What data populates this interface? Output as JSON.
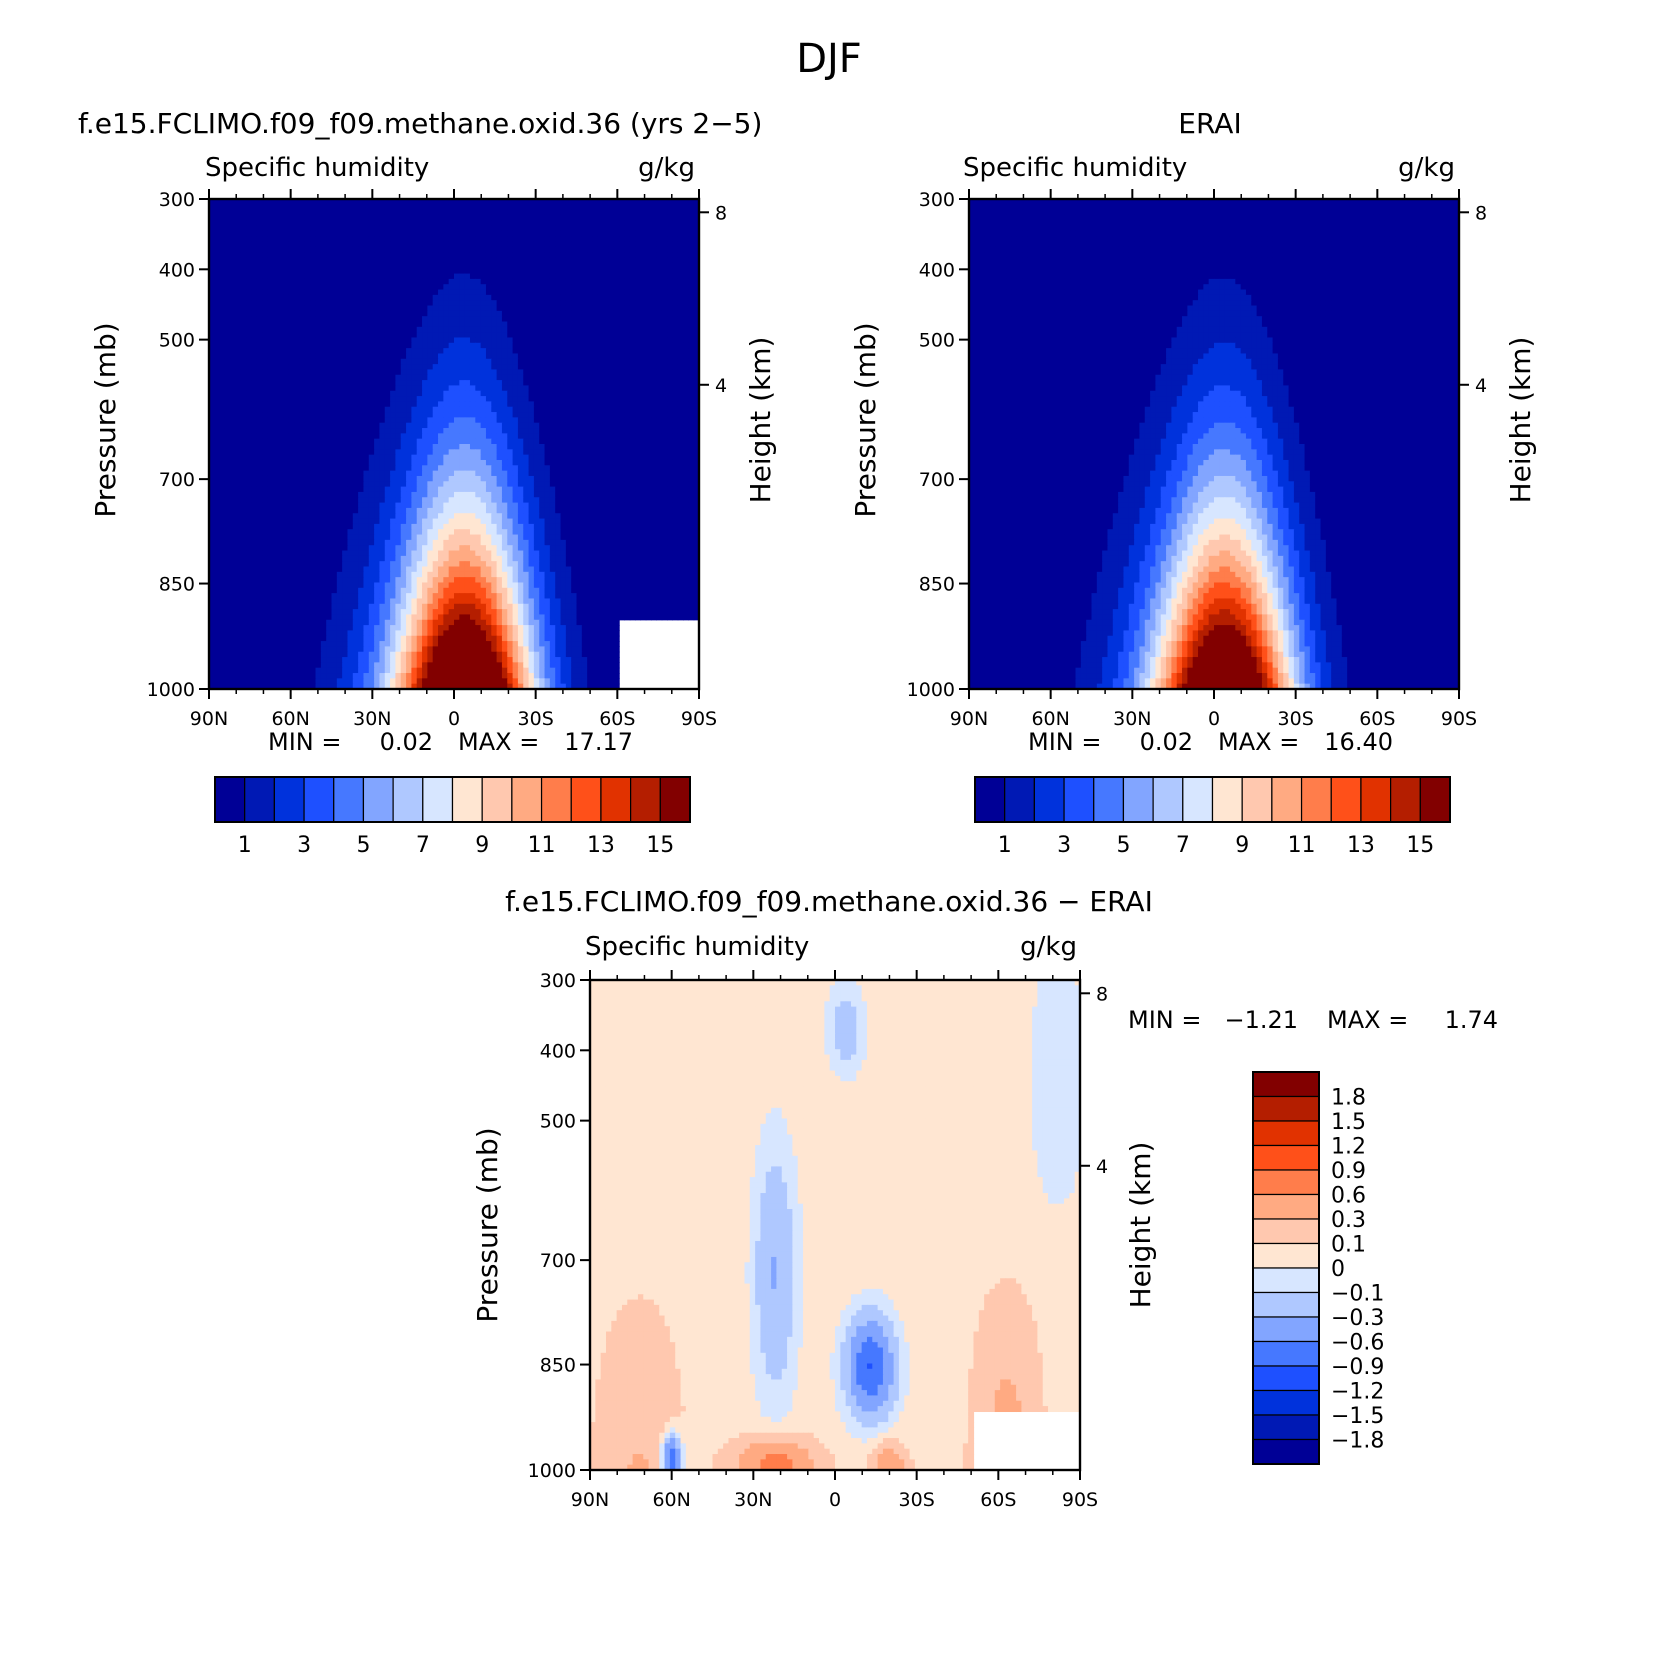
{
  "figure": {
    "title": "DJF"
  },
  "chart_data": [
    {
      "type": "heatmap",
      "panel_title": "f.e15.FCLIMO.f09_f09.methane.oxid.36 (yrs 2−5)",
      "left_string": "Specific humidity",
      "right_string": "g/kg",
      "ylabel": "Pressure (mb)",
      "ylabel_right": "Height (km)",
      "x_ticks": [
        "90N",
        "60N",
        "30N",
        "0",
        "30S",
        "60S",
        "90S"
      ],
      "y_ticks": [
        "300",
        "400",
        "500",
        "700",
        "850",
        "1000"
      ],
      "y_right_ticks": [
        "8",
        "4"
      ],
      "min_label": "MIN =",
      "min_value": "0.02",
      "max_label": "MAX =",
      "max_value": "17.17",
      "levels": [
        1,
        2,
        3,
        4,
        5,
        6,
        7,
        8,
        9,
        10,
        11,
        12,
        13,
        14,
        15
      ],
      "colorbar_labels": [
        "1",
        "3",
        "5",
        "7",
        "9",
        "11",
        "13",
        "15"
      ],
      "colors": [
        "#000096",
        "#0019b4",
        "#0032dc",
        "#1e50ff",
        "#4678ff",
        "#82a5ff",
        "#afc8ff",
        "#d7e6ff",
        "#ffe6d2",
        "#ffc8af",
        "#ffaa82",
        "#ff7d4b",
        "#ff5019",
        "#e13200",
        "#b41e00",
        "#820000"
      ],
      "field": {
        "peak": 17.17,
        "peak_lat": -5,
        "masked_surface": "60S-90S below 900 mb"
      }
    },
    {
      "type": "heatmap",
      "panel_title": "ERAI",
      "left_string": "Specific humidity",
      "right_string": "g/kg",
      "ylabel": "Pressure (mb)",
      "ylabel_right": "Height (km)",
      "x_ticks": [
        "90N",
        "60N",
        "30N",
        "0",
        "30S",
        "60S",
        "90S"
      ],
      "y_ticks": [
        "300",
        "400",
        "500",
        "700",
        "850",
        "1000"
      ],
      "y_right_ticks": [
        "8",
        "4"
      ],
      "min_label": "MIN =",
      "min_value": "0.02",
      "max_label": "MAX =",
      "max_value": "16.40",
      "levels": [
        1,
        2,
        3,
        4,
        5,
        6,
        7,
        8,
        9,
        10,
        11,
        12,
        13,
        14,
        15
      ],
      "colorbar_labels": [
        "1",
        "3",
        "5",
        "7",
        "9",
        "11",
        "13",
        "15"
      ],
      "colors": [
        "#000096",
        "#0019b4",
        "#0032dc",
        "#1e50ff",
        "#4678ff",
        "#82a5ff",
        "#afc8ff",
        "#d7e6ff",
        "#ffe6d2",
        "#ffc8af",
        "#ffaa82",
        "#ff7d4b",
        "#ff5019",
        "#e13200",
        "#b41e00",
        "#820000"
      ],
      "field": {
        "peak": 16.4,
        "peak_lat": -5
      }
    },
    {
      "type": "heatmap",
      "panel_title": "f.e15.FCLIMO.f09_f09.methane.oxid.36 − ERAI",
      "left_string": "Specific humidity",
      "right_string": "g/kg",
      "ylabel": "Pressure (mb)",
      "ylabel_right": "Height (km)",
      "x_ticks": [
        "90N",
        "60N",
        "30N",
        "0",
        "30S",
        "60S",
        "90S"
      ],
      "y_ticks": [
        "300",
        "400",
        "500",
        "700",
        "850",
        "1000"
      ],
      "y_right_ticks": [
        "8",
        "4"
      ],
      "min_label": "MIN =",
      "min_value": "−1.21",
      "max_label": "MAX =",
      "max_value": "1.74",
      "colorbar_labels": [
        "1.8",
        "1.5",
        "1.2",
        "0.9",
        "0.6",
        "0.3",
        "0.1",
        "0",
        "−0.1",
        "−0.3",
        "−0.6",
        "−0.9",
        "−1.2",
        "−1.5",
        "−1.8"
      ],
      "colors": [
        "#000096",
        "#0019b4",
        "#0032dc",
        "#1e50ff",
        "#4678ff",
        "#82a5ff",
        "#afc8ff",
        "#d7e6ff",
        "#ffe6d2",
        "#ffc8af",
        "#ffaa82",
        "#ff7d4b",
        "#ff5019",
        "#e13200",
        "#b41e00",
        "#820000"
      ]
    }
  ]
}
